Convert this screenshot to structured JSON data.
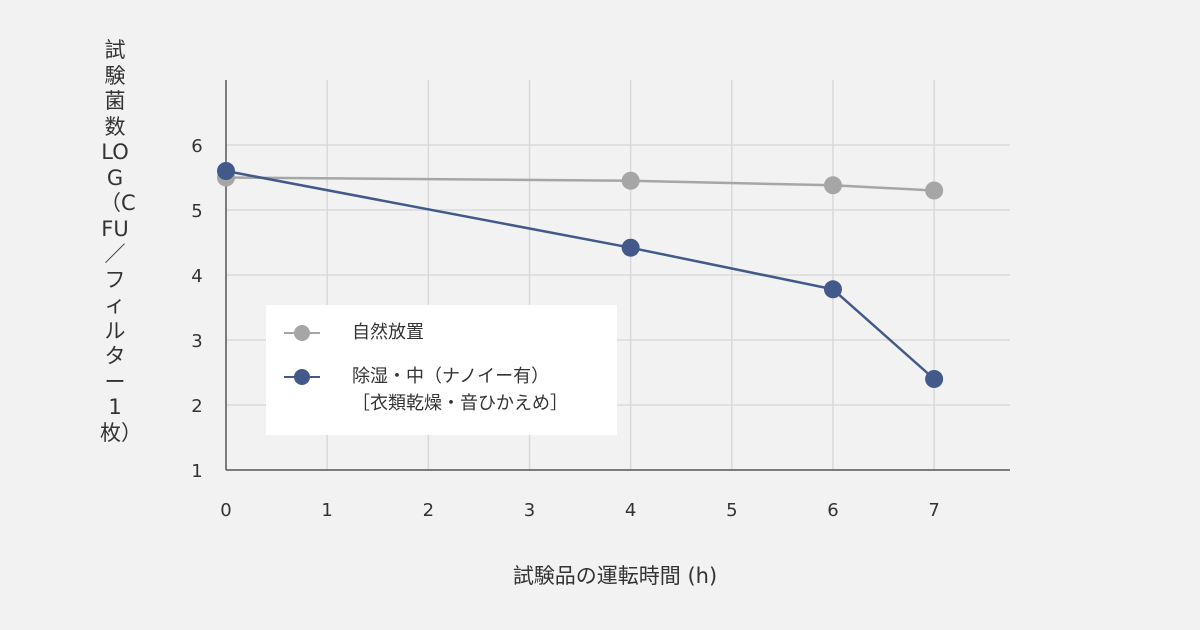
{
  "chart_data": {
    "type": "line",
    "title": "",
    "xlabel": "試験品の運転時間 (h)",
    "ylabel": "試験菌数 LOG（CFU／フィルター1枚）",
    "x_ticks": [
      0,
      1,
      2,
      3,
      4,
      5,
      6,
      7
    ],
    "y_ticks": [
      1,
      2,
      3,
      4,
      5,
      6
    ],
    "xlim": [
      0,
      7.75
    ],
    "ylim": [
      1,
      7
    ],
    "grid": true,
    "legend_placement": "center-left",
    "series": [
      {
        "name": "自然放置",
        "color": "#a6a6a6",
        "x": [
          0,
          4,
          6,
          7
        ],
        "y": [
          5.5,
          5.45,
          5.38,
          5.3
        ]
      },
      {
        "name": "除湿・中（ナノイー有）",
        "name_line2": "［衣類乾燥・音ひかえめ］",
        "color": "#43598a",
        "x": [
          0,
          4,
          6,
          7
        ],
        "y": [
          5.6,
          4.42,
          3.78,
          2.4
        ]
      }
    ]
  }
}
